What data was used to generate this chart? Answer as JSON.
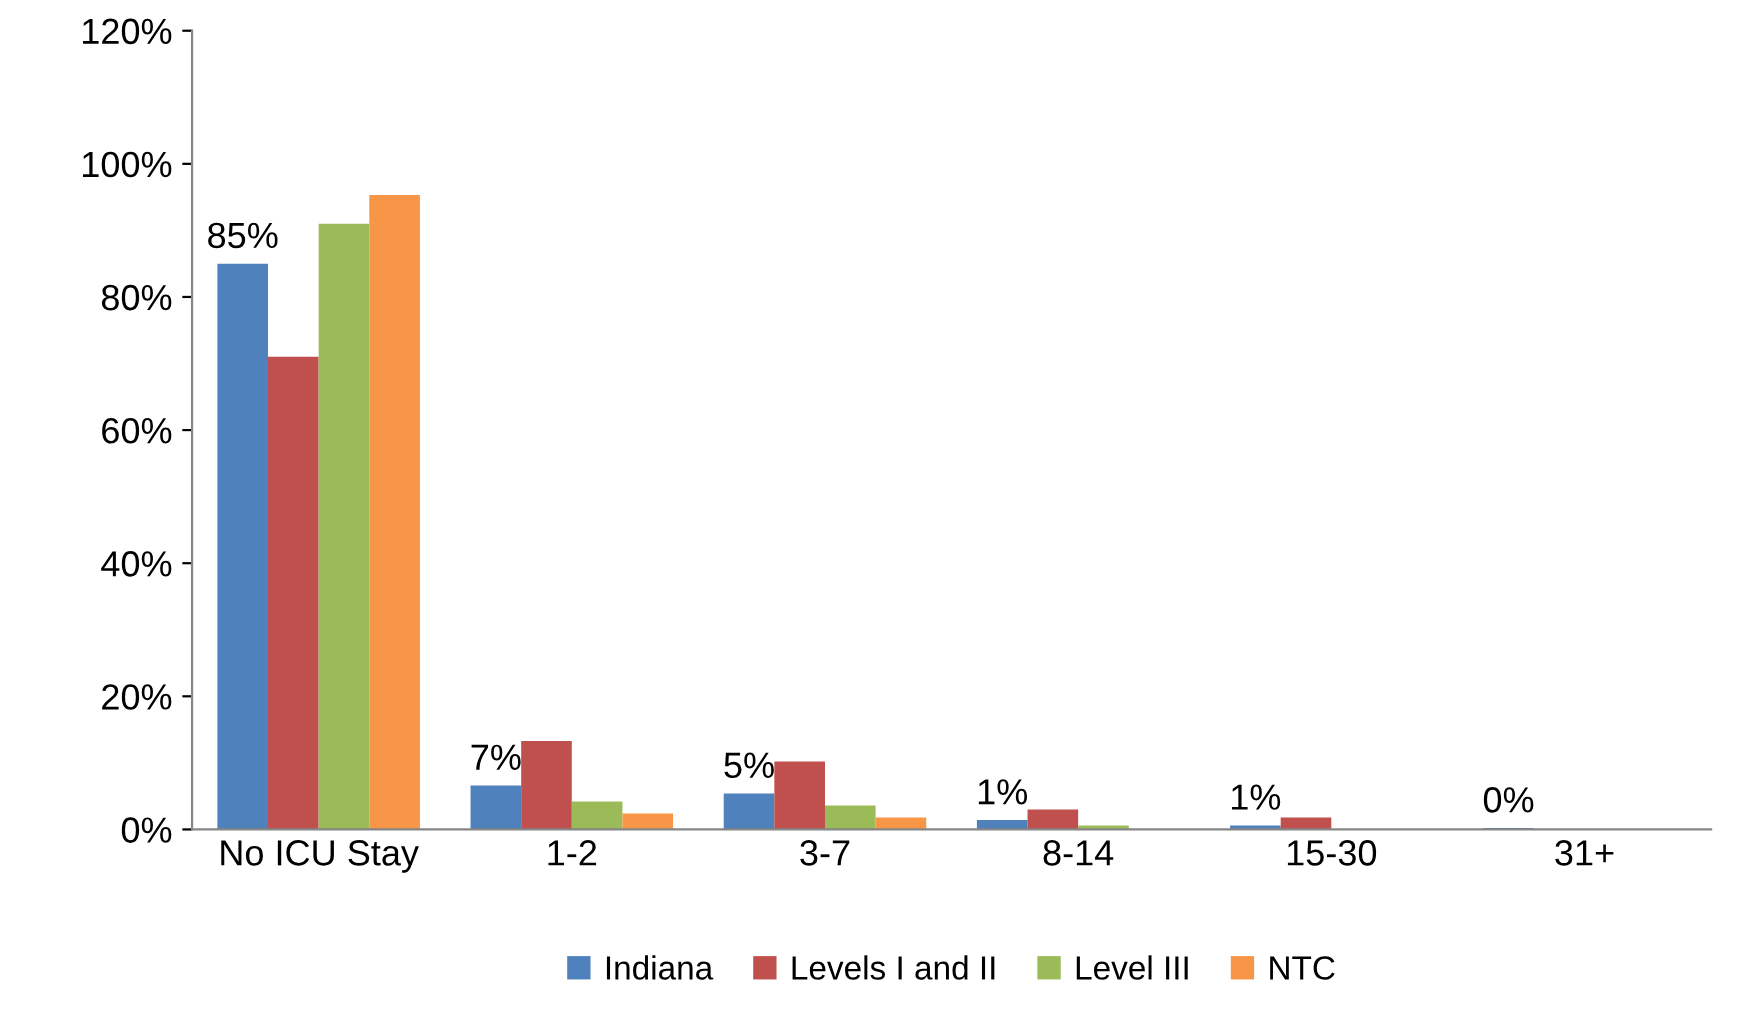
{
  "chart_data": {
    "type": "bar",
    "categories": [
      "No ICU Stay",
      "1-2",
      "3-7",
      "8-14",
      "15-30",
      "31+"
    ],
    "series": [
      {
        "name": "Indiana",
        "color": "#4f81bd",
        "values": [
          85,
          6.6,
          5.4,
          1.4,
          0.6,
          0.2
        ],
        "value_labels": [
          "85%",
          "7%",
          "5%",
          "1%",
          "1%",
          "0%"
        ]
      },
      {
        "name": "Levels I and II",
        "color": "#c0504d",
        "values": [
          71,
          13.3,
          10.2,
          3,
          1.8,
          0
        ]
      },
      {
        "name": "Level III",
        "color": "#9bbb59",
        "values": [
          91,
          4.2,
          3.6,
          0.6,
          0,
          0
        ]
      },
      {
        "name": "NTC",
        "color": "#f79646",
        "values": [
          95.3,
          2.4,
          1.8,
          0,
          0,
          0
        ]
      }
    ],
    "ylim": [
      0,
      120
    ],
    "yticks": [
      {
        "value": 0,
        "label": "0%"
      },
      {
        "value": 20,
        "label": "20%"
      },
      {
        "value": 40,
        "label": "40%"
      },
      {
        "value": 60,
        "label": "60%"
      },
      {
        "value": 80,
        "label": "80%"
      },
      {
        "value": 100,
        "label": "100%"
      },
      {
        "value": 120,
        "label": "120%"
      }
    ],
    "grid": false,
    "legend": "bottom"
  }
}
